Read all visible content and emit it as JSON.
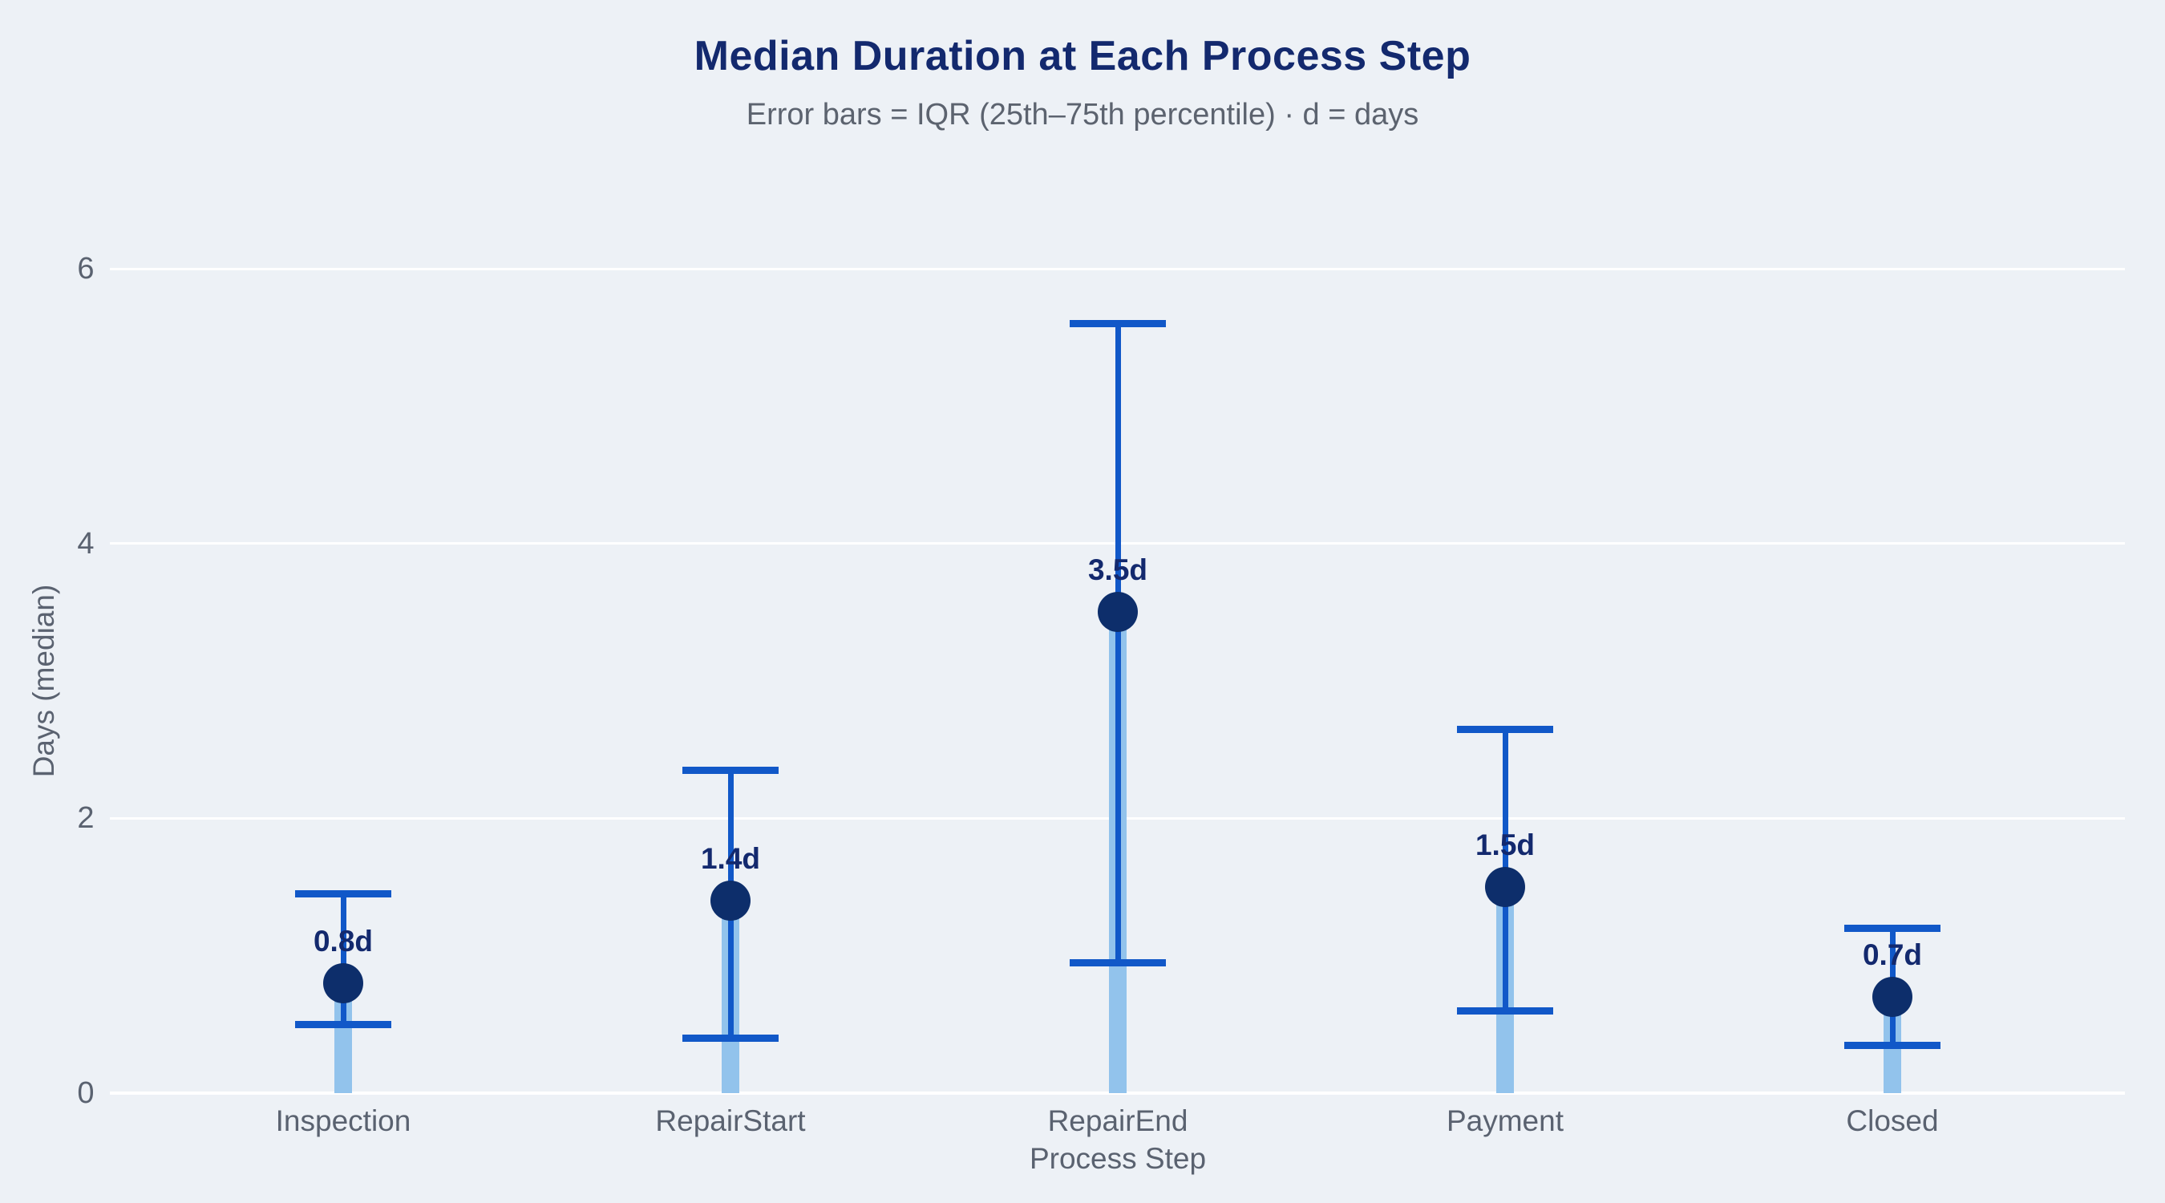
{
  "chart_data": {
    "type": "scatter",
    "title": "Median Duration at Each Process Step",
    "subtitle": "Error bars = IQR (25th–75th percentile) · d = days",
    "xlabel": "Process Step",
    "ylabel": "Days (median)",
    "categories": [
      "Inspection",
      "RepairStart",
      "RepairEnd",
      "Payment",
      "Closed"
    ],
    "series": [
      {
        "name": "median_days",
        "values": [
          0.8,
          1.4,
          3.5,
          1.5,
          0.7
        ]
      },
      {
        "name": "iqr_25th_percentile_days",
        "values": [
          0.5,
          0.4,
          0.95,
          0.6,
          0.35
        ]
      },
      {
        "name": "iqr_75th_percentile_days",
        "values": [
          1.45,
          2.35,
          5.6,
          2.65,
          1.2
        ]
      }
    ],
    "point_labels": [
      "0.8d",
      "1.4d",
      "3.5d",
      "1.5d",
      "0.7d"
    ],
    "yticks": [
      0,
      2,
      4,
      6
    ],
    "ylim": [
      0,
      6.9
    ],
    "grid": true,
    "legend": false,
    "marks": "light-blue bar from 0 to median, navy median dot, blue IQR whisker with caps"
  },
  "colors": {
    "background": "#edf1f6",
    "gridline": "#ffffff",
    "title_navy": "#13296e",
    "marker_navy": "#0d2e6b",
    "error_blue": "#1158c8",
    "bar_light_blue": "#92c3ec",
    "axis_gray": "#5a6270"
  }
}
